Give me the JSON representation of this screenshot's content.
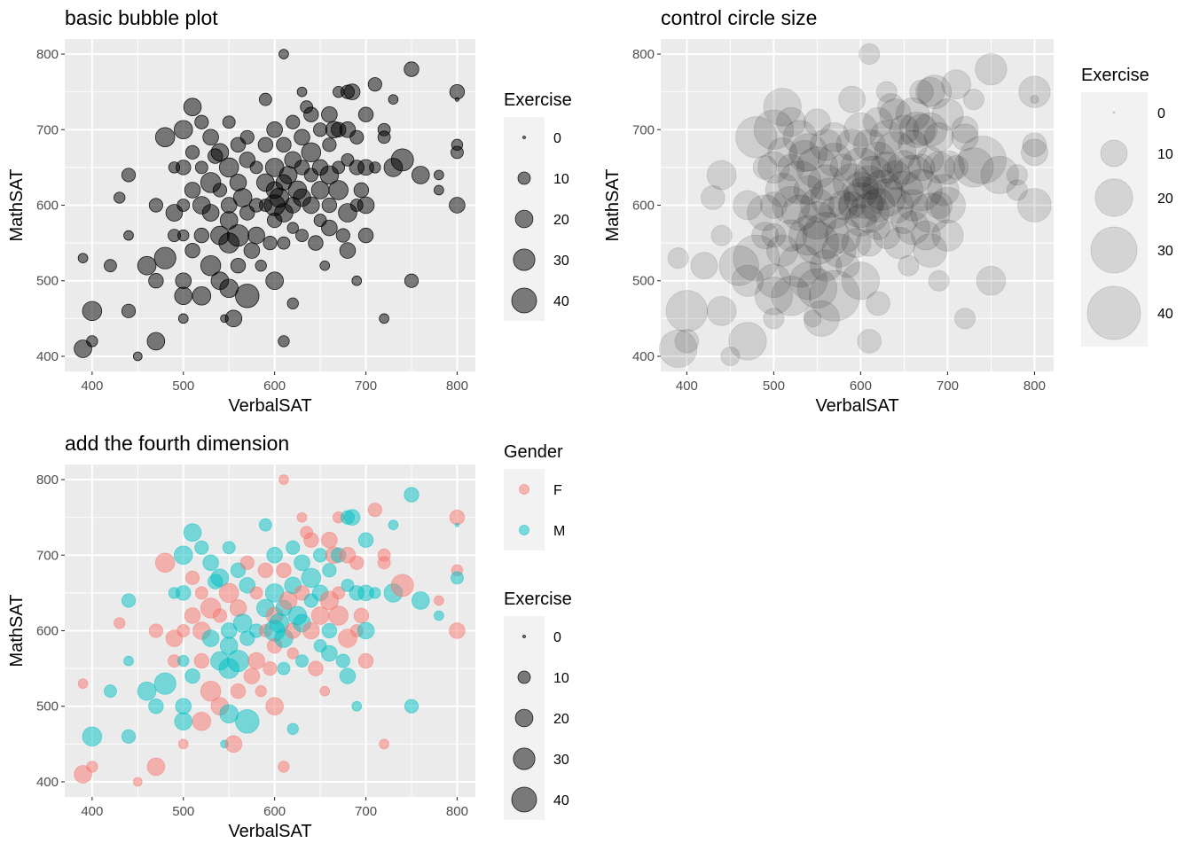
{
  "chart_data": [
    {
      "type": "scatter",
      "title": "basic bubble plot",
      "xlabel": "VerbalSAT",
      "ylabel": "MathSAT",
      "xticks": [
        "400",
        "500",
        "600",
        "700",
        "800"
      ],
      "yticks": [
        "400",
        "500",
        "600",
        "700",
        "800"
      ],
      "xlim": [
        370,
        820
      ],
      "ylim": [
        380,
        820
      ],
      "size_legend": {
        "title": "Exercise",
        "values": [
          0,
          10,
          20,
          30,
          40
        ],
        "labels": [
          "0",
          "10",
          "20",
          "30",
          "40"
        ]
      },
      "point_color": "#000000",
      "point_alpha": 0.5
    },
    {
      "type": "scatter",
      "title": "control circle size",
      "xlabel": "VerbalSAT",
      "ylabel": "MathSAT",
      "xticks": [
        "400",
        "500",
        "600",
        "700",
        "800"
      ],
      "yticks": [
        "400",
        "500",
        "600",
        "700",
        "800"
      ],
      "xlim": [
        370,
        822
      ],
      "ylim": [
        380,
        820
      ],
      "size_legend": {
        "title": "Exercise",
        "values": [
          0,
          10,
          20,
          30,
          40
        ],
        "labels": [
          "0",
          "10",
          "20",
          "30",
          "40"
        ]
      },
      "point_color": "#000000",
      "point_alpha": 0.12
    },
    {
      "type": "scatter",
      "title": "add the fourth dimension",
      "xlabel": "VerbalSAT",
      "ylabel": "MathSAT",
      "xticks": [
        "400",
        "500",
        "600",
        "700",
        "800"
      ],
      "yticks": [
        "400",
        "500",
        "600",
        "700",
        "800"
      ],
      "xlim": [
        370,
        820
      ],
      "ylim": [
        380,
        820
      ],
      "color_legend": {
        "title": "Gender",
        "labels": [
          "F",
          "M"
        ],
        "colors": [
          "#F8766D",
          "#00BFC4"
        ]
      },
      "size_legend": {
        "title": "Exercise",
        "values": [
          0,
          10,
          20,
          30,
          40
        ],
        "labels": [
          "0",
          "10",
          "20",
          "30",
          "40"
        ]
      }
    }
  ],
  "points": [
    {
      "x": 390,
      "y": 410,
      "size": 20,
      "gender": "F"
    },
    {
      "x": 390,
      "y": 530,
      "size": 6,
      "gender": "F"
    },
    {
      "x": 400,
      "y": 460,
      "size": 24,
      "gender": "M"
    },
    {
      "x": 400,
      "y": 420,
      "size": 8,
      "gender": "F"
    },
    {
      "x": 420,
      "y": 520,
      "size": 10,
      "gender": "M"
    },
    {
      "x": 430,
      "y": 610,
      "size": 8,
      "gender": "F"
    },
    {
      "x": 440,
      "y": 640,
      "size": 12,
      "gender": "M"
    },
    {
      "x": 440,
      "y": 560,
      "size": 6,
      "gender": "M"
    },
    {
      "x": 440,
      "y": 460,
      "size": 12,
      "gender": "M"
    },
    {
      "x": 450,
      "y": 400,
      "size": 5,
      "gender": "F"
    },
    {
      "x": 460,
      "y": 520,
      "size": 22,
      "gender": "M"
    },
    {
      "x": 470,
      "y": 600,
      "size": 12,
      "gender": "F"
    },
    {
      "x": 470,
      "y": 420,
      "size": 20,
      "gender": "F"
    },
    {
      "x": 470,
      "y": 500,
      "size": 14,
      "gender": "M"
    },
    {
      "x": 480,
      "y": 690,
      "size": 24,
      "gender": "F"
    },
    {
      "x": 480,
      "y": 530,
      "size": 30,
      "gender": "M"
    },
    {
      "x": 490,
      "y": 590,
      "size": 18,
      "gender": "F"
    },
    {
      "x": 490,
      "y": 650,
      "size": 8,
      "gender": "M"
    },
    {
      "x": 490,
      "y": 560,
      "size": 10,
      "gender": "F"
    },
    {
      "x": 500,
      "y": 700,
      "size": 22,
      "gender": "M"
    },
    {
      "x": 500,
      "y": 650,
      "size": 14,
      "gender": "M"
    },
    {
      "x": 500,
      "y": 600,
      "size": 10,
      "gender": "F"
    },
    {
      "x": 500,
      "y": 560,
      "size": 8,
      "gender": "M"
    },
    {
      "x": 500,
      "y": 500,
      "size": 16,
      "gender": "M"
    },
    {
      "x": 500,
      "y": 480,
      "size": 20,
      "gender": "M"
    },
    {
      "x": 500,
      "y": 450,
      "size": 6,
      "gender": "F"
    },
    {
      "x": 510,
      "y": 730,
      "size": 20,
      "gender": "M"
    },
    {
      "x": 510,
      "y": 670,
      "size": 12,
      "gender": "F"
    },
    {
      "x": 510,
      "y": 620,
      "size": 16,
      "gender": "F"
    },
    {
      "x": 510,
      "y": 540,
      "size": 14,
      "gender": "M"
    },
    {
      "x": 520,
      "y": 710,
      "size": 12,
      "gender": "M"
    },
    {
      "x": 520,
      "y": 650,
      "size": 10,
      "gender": "F"
    },
    {
      "x": 520,
      "y": 600,
      "size": 20,
      "gender": "F"
    },
    {
      "x": 520,
      "y": 560,
      "size": 14,
      "gender": "F"
    },
    {
      "x": 520,
      "y": 480,
      "size": 22,
      "gender": "F"
    },
    {
      "x": 530,
      "y": 690,
      "size": 16,
      "gender": "M"
    },
    {
      "x": 530,
      "y": 630,
      "size": 26,
      "gender": "F"
    },
    {
      "x": 530,
      "y": 590,
      "size": 18,
      "gender": "M"
    },
    {
      "x": 530,
      "y": 520,
      "size": 26,
      "gender": "F"
    },
    {
      "x": 535,
      "y": 665,
      "size": 14,
      "gender": "M"
    },
    {
      "x": 540,
      "y": 670,
      "size": 20,
      "gender": "M"
    },
    {
      "x": 540,
      "y": 620,
      "size": 12,
      "gender": "F"
    },
    {
      "x": 540,
      "y": 560,
      "size": 22,
      "gender": "M"
    },
    {
      "x": 540,
      "y": 500,
      "size": 20,
      "gender": "F"
    },
    {
      "x": 545,
      "y": 450,
      "size": 4,
      "gender": "M"
    },
    {
      "x": 550,
      "y": 710,
      "size": 10,
      "gender": "M"
    },
    {
      "x": 550,
      "y": 650,
      "size": 24,
      "gender": "F"
    },
    {
      "x": 550,
      "y": 600,
      "size": 16,
      "gender": "M"
    },
    {
      "x": 550,
      "y": 580,
      "size": 20,
      "gender": "M"
    },
    {
      "x": 550,
      "y": 550,
      "size": 26,
      "gender": "M"
    },
    {
      "x": 550,
      "y": 490,
      "size": 22,
      "gender": "M"
    },
    {
      "x": 555,
      "y": 450,
      "size": 18,
      "gender": "F"
    },
    {
      "x": 560,
      "y": 680,
      "size": 14,
      "gender": "M"
    },
    {
      "x": 560,
      "y": 630,
      "size": 18,
      "gender": "F"
    },
    {
      "x": 560,
      "y": 560,
      "size": 30,
      "gender": "M"
    },
    {
      "x": 560,
      "y": 520,
      "size": 14,
      "gender": "F"
    },
    {
      "x": 565,
      "y": 610,
      "size": 22,
      "gender": "M"
    },
    {
      "x": 570,
      "y": 690,
      "size": 12,
      "gender": "F"
    },
    {
      "x": 570,
      "y": 660,
      "size": 16,
      "gender": "M"
    },
    {
      "x": 570,
      "y": 590,
      "size": 14,
      "gender": "M"
    },
    {
      "x": 570,
      "y": 480,
      "size": 36,
      "gender": "M"
    },
    {
      "x": 575,
      "y": 540,
      "size": 16,
      "gender": "F"
    },
    {
      "x": 580,
      "y": 650,
      "size": 10,
      "gender": "F"
    },
    {
      "x": 580,
      "y": 600,
      "size": 12,
      "gender": "M"
    },
    {
      "x": 580,
      "y": 560,
      "size": 18,
      "gender": "F"
    },
    {
      "x": 585,
      "y": 520,
      "size": 8,
      "gender": "F"
    },
    {
      "x": 590,
      "y": 740,
      "size": 10,
      "gender": "M"
    },
    {
      "x": 590,
      "y": 680,
      "size": 14,
      "gender": "F"
    },
    {
      "x": 590,
      "y": 630,
      "size": 20,
      "gender": "M"
    },
    {
      "x": 590,
      "y": 600,
      "size": 10,
      "gender": "F"
    },
    {
      "x": 595,
      "y": 550,
      "size": 12,
      "gender": "F"
    },
    {
      "x": 600,
      "y": 700,
      "size": 16,
      "gender": "M"
    },
    {
      "x": 600,
      "y": 650,
      "size": 22,
      "gender": "M"
    },
    {
      "x": 600,
      "y": 620,
      "size": 18,
      "gender": "F"
    },
    {
      "x": 600,
      "y": 600,
      "size": 28,
      "gender": "M"
    },
    {
      "x": 600,
      "y": 580,
      "size": 14,
      "gender": "F"
    },
    {
      "x": 600,
      "y": 500,
      "size": 20,
      "gender": "F"
    },
    {
      "x": 605,
      "y": 610,
      "size": 24,
      "gender": "M"
    },
    {
      "x": 610,
      "y": 800,
      "size": 6,
      "gender": "F"
    },
    {
      "x": 610,
      "y": 680,
      "size": 14,
      "gender": "F"
    },
    {
      "x": 610,
      "y": 630,
      "size": 16,
      "gender": "M"
    },
    {
      "x": 610,
      "y": 590,
      "size": 22,
      "gender": "M"
    },
    {
      "x": 610,
      "y": 550,
      "size": 10,
      "gender": "M"
    },
    {
      "x": 610,
      "y": 420,
      "size": 8,
      "gender": "F"
    },
    {
      "x": 615,
      "y": 640,
      "size": 20,
      "gender": "F"
    },
    {
      "x": 620,
      "y": 710,
      "size": 12,
      "gender": "M"
    },
    {
      "x": 620,
      "y": 660,
      "size": 18,
      "gender": "M"
    },
    {
      "x": 620,
      "y": 600,
      "size": 16,
      "gender": "F"
    },
    {
      "x": 620,
      "y": 570,
      "size": 8,
      "gender": "F"
    },
    {
      "x": 620,
      "y": 470,
      "size": 8,
      "gender": "M"
    },
    {
      "x": 625,
      "y": 620,
      "size": 22,
      "gender": "M"
    },
    {
      "x": 630,
      "y": 750,
      "size": 6,
      "gender": "F"
    },
    {
      "x": 630,
      "y": 690,
      "size": 16,
      "gender": "M"
    },
    {
      "x": 630,
      "y": 650,
      "size": 14,
      "gender": "F"
    },
    {
      "x": 630,
      "y": 610,
      "size": 20,
      "gender": "M"
    },
    {
      "x": 630,
      "y": 560,
      "size": 10,
      "gender": "M"
    },
    {
      "x": 635,
      "y": 730,
      "size": 10,
      "gender": "F"
    },
    {
      "x": 640,
      "y": 720,
      "size": 14,
      "gender": "F"
    },
    {
      "x": 640,
      "y": 670,
      "size": 24,
      "gender": "M"
    },
    {
      "x": 640,
      "y": 640,
      "size": 12,
      "gender": "M"
    },
    {
      "x": 640,
      "y": 600,
      "size": 18,
      "gender": "F"
    },
    {
      "x": 645,
      "y": 550,
      "size": 14,
      "gender": "F"
    },
    {
      "x": 650,
      "y": 700,
      "size": 12,
      "gender": "M"
    },
    {
      "x": 650,
      "y": 650,
      "size": 16,
      "gender": "M"
    },
    {
      "x": 650,
      "y": 620,
      "size": 20,
      "gender": "F"
    },
    {
      "x": 650,
      "y": 580,
      "size": 10,
      "gender": "M"
    },
    {
      "x": 655,
      "y": 520,
      "size": 6,
      "gender": "F"
    },
    {
      "x": 660,
      "y": 720,
      "size": 16,
      "gender": "F"
    },
    {
      "x": 660,
      "y": 680,
      "size": 12,
      "gender": "M"
    },
    {
      "x": 660,
      "y": 640,
      "size": 22,
      "gender": "F"
    },
    {
      "x": 660,
      "y": 600,
      "size": 14,
      "gender": "M"
    },
    {
      "x": 660,
      "y": 570,
      "size": 16,
      "gender": "M"
    },
    {
      "x": 665,
      "y": 700,
      "size": 18,
      "gender": "F"
    },
    {
      "x": 670,
      "y": 750,
      "size": 8,
      "gender": "F"
    },
    {
      "x": 670,
      "y": 700,
      "size": 14,
      "gender": "M"
    },
    {
      "x": 670,
      "y": 650,
      "size": 10,
      "gender": "F"
    },
    {
      "x": 670,
      "y": 620,
      "size": 24,
      "gender": "F"
    },
    {
      "x": 675,
      "y": 560,
      "size": 12,
      "gender": "M"
    },
    {
      "x": 680,
      "y": 750,
      "size": 12,
      "gender": "M"
    },
    {
      "x": 680,
      "y": 700,
      "size": 16,
      "gender": "F"
    },
    {
      "x": 680,
      "y": 660,
      "size": 10,
      "gender": "M"
    },
    {
      "x": 680,
      "y": 590,
      "size": 22,
      "gender": "F"
    },
    {
      "x": 680,
      "y": 540,
      "size": 16,
      "gender": "M"
    },
    {
      "x": 685,
      "y": 750,
      "size": 16,
      "gender": "M"
    },
    {
      "x": 690,
      "y": 690,
      "size": 12,
      "gender": "F"
    },
    {
      "x": 690,
      "y": 650,
      "size": 14,
      "gender": "M"
    },
    {
      "x": 690,
      "y": 600,
      "size": 10,
      "gender": "F"
    },
    {
      "x": 690,
      "y": 500,
      "size": 6,
      "gender": "M"
    },
    {
      "x": 695,
      "y": 620,
      "size": 14,
      "gender": "F"
    },
    {
      "x": 700,
      "y": 720,
      "size": 14,
      "gender": "M"
    },
    {
      "x": 700,
      "y": 650,
      "size": 16,
      "gender": "M"
    },
    {
      "x": 700,
      "y": 600,
      "size": 18,
      "gender": "M"
    },
    {
      "x": 700,
      "y": 560,
      "size": 14,
      "gender": "F"
    },
    {
      "x": 710,
      "y": 760,
      "size": 12,
      "gender": "F"
    },
    {
      "x": 710,
      "y": 650,
      "size": 8,
      "gender": "M"
    },
    {
      "x": 720,
      "y": 700,
      "size": 10,
      "gender": "F"
    },
    {
      "x": 720,
      "y": 690,
      "size": 10,
      "gender": "F"
    },
    {
      "x": 720,
      "y": 450,
      "size": 6,
      "gender": "F"
    },
    {
      "x": 730,
      "y": 740,
      "size": 6,
      "gender": "M"
    },
    {
      "x": 730,
      "y": 650,
      "size": 22,
      "gender": "M"
    },
    {
      "x": 740,
      "y": 660,
      "size": 32,
      "gender": "F"
    },
    {
      "x": 750,
      "y": 780,
      "size": 14,
      "gender": "M"
    },
    {
      "x": 750,
      "y": 500,
      "size": 12,
      "gender": "M"
    },
    {
      "x": 760,
      "y": 640,
      "size": 20,
      "gender": "M"
    },
    {
      "x": 780,
      "y": 640,
      "size": 6,
      "gender": "F"
    },
    {
      "x": 780,
      "y": 620,
      "size": 6,
      "gender": "M"
    },
    {
      "x": 800,
      "y": 750,
      "size": 14,
      "gender": "F"
    },
    {
      "x": 800,
      "y": 740,
      "size": 1,
      "gender": "M"
    },
    {
      "x": 800,
      "y": 680,
      "size": 8,
      "gender": "F"
    },
    {
      "x": 800,
      "y": 670,
      "size": 10,
      "gender": "M"
    },
    {
      "x": 800,
      "y": 600,
      "size": 16,
      "gender": "F"
    }
  ]
}
